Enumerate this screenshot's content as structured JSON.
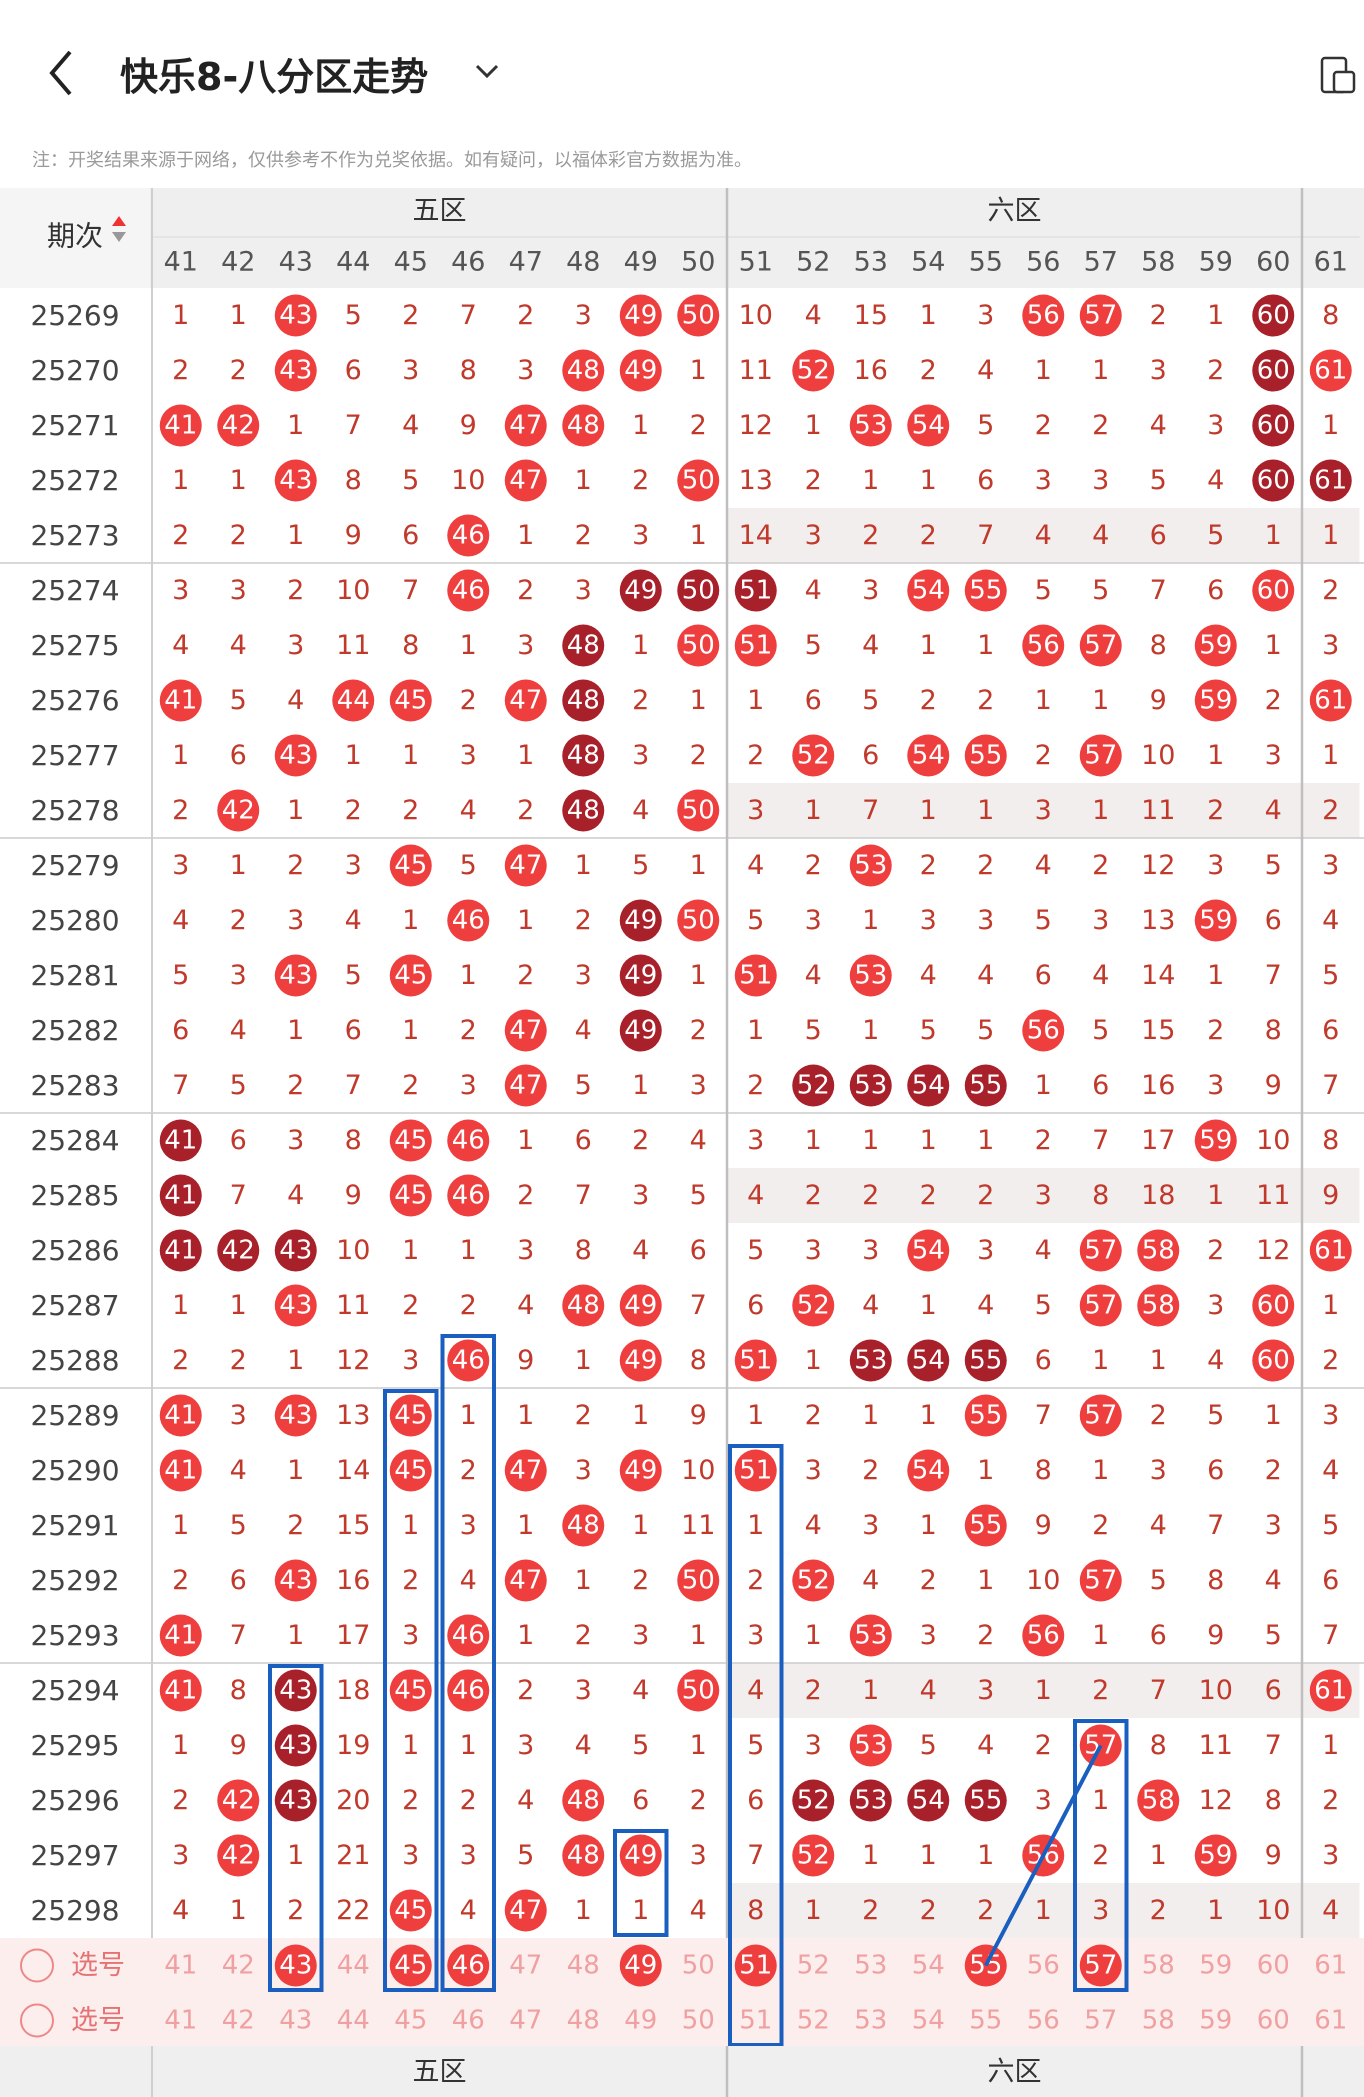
{
  "header": {
    "title": "快乐8-八分区走势",
    "notice": "注：开奖结果来源于网络，仅供参考不作为兑奖依据。如有疑问，以福体彩官方数据为准。",
    "icons": {
      "back": "chevron-left-icon",
      "title_dropdown": "chevron-down-icon",
      "device": "device-toggle-icon"
    }
  },
  "table": {
    "period_header": "期次",
    "zone_names": [
      "五区",
      "六区"
    ],
    "columns": [
      41,
      42,
      43,
      44,
      45,
      46,
      47,
      48,
      49,
      50,
      51,
      52,
      53,
      54,
      55,
      56,
      57,
      58,
      59,
      60,
      61
    ],
    "shaded_rows": [
      4,
      9,
      16,
      25,
      29
    ],
    "rows": [
      {
        "period": "25269",
        "cells": [
          1,
          1,
          "43",
          5,
          2,
          7,
          2,
          3,
          "49",
          "50",
          10,
          4,
          15,
          1,
          3,
          "56",
          "57",
          2,
          1,
          "60d",
          8
        ]
      },
      {
        "period": "25270",
        "cells": [
          2,
          2,
          "43",
          6,
          3,
          8,
          3,
          "48",
          "49",
          1,
          11,
          "52",
          16,
          2,
          4,
          1,
          1,
          3,
          2,
          "60d",
          "61"
        ]
      },
      {
        "period": "25271",
        "cells": [
          "41",
          "42",
          1,
          7,
          4,
          9,
          "47",
          "48",
          1,
          2,
          12,
          1,
          "53",
          "54",
          5,
          2,
          2,
          4,
          3,
          "60d",
          1
        ]
      },
      {
        "period": "25272",
        "cells": [
          1,
          1,
          "43",
          8,
          5,
          10,
          "47",
          1,
          2,
          "50",
          13,
          2,
          1,
          1,
          6,
          3,
          3,
          5,
          4,
          "60d",
          "61d"
        ]
      },
      {
        "period": "25273",
        "cells": [
          2,
          2,
          1,
          9,
          6,
          "46",
          1,
          2,
          3,
          1,
          14,
          3,
          2,
          2,
          7,
          4,
          4,
          6,
          5,
          1,
          1
        ]
      },
      {
        "period": "25274",
        "cells": [
          3,
          3,
          2,
          10,
          7,
          "46",
          2,
          3,
          "49d",
          "50d",
          "51d",
          4,
          3,
          "54",
          "55",
          5,
          5,
          7,
          6,
          "60",
          2
        ]
      },
      {
        "period": "25275",
        "cells": [
          4,
          4,
          3,
          11,
          8,
          1,
          3,
          "48d",
          1,
          "50",
          "51",
          5,
          4,
          1,
          1,
          "56",
          "57",
          8,
          "59",
          1,
          3
        ]
      },
      {
        "period": "25276",
        "cells": [
          "41",
          5,
          4,
          "44",
          "45",
          2,
          "47",
          "48d",
          2,
          1,
          1,
          6,
          5,
          2,
          2,
          1,
          1,
          9,
          "59",
          2,
          "61"
        ]
      },
      {
        "period": "25277",
        "cells": [
          1,
          6,
          "43",
          1,
          1,
          3,
          1,
          "48d",
          3,
          2,
          2,
          "52",
          6,
          "54",
          "55",
          2,
          "57",
          10,
          1,
          3,
          1
        ]
      },
      {
        "period": "25278",
        "cells": [
          2,
          "42",
          1,
          2,
          2,
          4,
          2,
          "48d",
          4,
          "50",
          3,
          1,
          7,
          1,
          1,
          3,
          1,
          11,
          2,
          4,
          2
        ]
      },
      {
        "period": "25279",
        "cells": [
          3,
          1,
          2,
          3,
          "45",
          5,
          "47",
          1,
          5,
          1,
          4,
          2,
          "53",
          2,
          2,
          4,
          2,
          12,
          3,
          5,
          3
        ]
      },
      {
        "period": "25280",
        "cells": [
          4,
          2,
          3,
          4,
          1,
          "46",
          1,
          2,
          "49d",
          "50",
          5,
          3,
          1,
          3,
          3,
          5,
          3,
          13,
          "59",
          6,
          4
        ]
      },
      {
        "period": "25281",
        "cells": [
          5,
          3,
          "43",
          5,
          "45",
          1,
          2,
          3,
          "49d",
          1,
          "51",
          4,
          "53",
          4,
          4,
          6,
          4,
          14,
          1,
          7,
          5
        ]
      },
      {
        "period": "25282",
        "cells": [
          6,
          4,
          1,
          6,
          1,
          2,
          "47",
          4,
          "49d",
          2,
          1,
          5,
          1,
          5,
          5,
          "56",
          5,
          15,
          2,
          8,
          6
        ]
      },
      {
        "period": "25283",
        "cells": [
          7,
          5,
          2,
          7,
          2,
          3,
          "47",
          5,
          1,
          3,
          2,
          "52d",
          "53d",
          "54d",
          "55d",
          1,
          6,
          16,
          3,
          9,
          7
        ]
      },
      {
        "period": "25284",
        "cells": [
          "41d",
          6,
          3,
          8,
          "45",
          "46",
          1,
          6,
          2,
          4,
          3,
          1,
          1,
          1,
          1,
          2,
          7,
          17,
          "59",
          10,
          8
        ]
      },
      {
        "period": "25285",
        "cells": [
          "41d",
          7,
          4,
          9,
          "45",
          "46",
          2,
          7,
          3,
          5,
          4,
          2,
          2,
          2,
          2,
          3,
          8,
          18,
          1,
          11,
          9
        ]
      },
      {
        "period": "25286",
        "cells": [
          "41d",
          "42d",
          "43d",
          10,
          1,
          1,
          3,
          8,
          4,
          6,
          5,
          3,
          3,
          "54",
          3,
          4,
          "57",
          "58",
          2,
          12,
          "61"
        ]
      },
      {
        "period": "25287",
        "cells": [
          1,
          1,
          "43",
          11,
          2,
          2,
          4,
          "48",
          "49",
          7,
          6,
          "52",
          4,
          1,
          4,
          5,
          "57",
          "58",
          3,
          "60",
          1
        ]
      },
      {
        "period": "25288",
        "cells": [
          2,
          2,
          1,
          12,
          3,
          "46",
          9,
          1,
          "49",
          8,
          "51",
          1,
          "53d",
          "54d",
          "55d",
          6,
          1,
          1,
          4,
          "60",
          2
        ]
      },
      {
        "period": "25289",
        "cells": [
          "41",
          3,
          "43",
          13,
          "45",
          1,
          1,
          2,
          1,
          9,
          1,
          2,
          1,
          1,
          "55",
          7,
          "57",
          2,
          5,
          1,
          3
        ]
      },
      {
        "period": "25290",
        "cells": [
          "41",
          4,
          1,
          14,
          "45",
          2,
          "47",
          3,
          "49",
          10,
          "51",
          3,
          2,
          "54",
          1,
          8,
          1,
          3,
          6,
          2,
          4
        ]
      },
      {
        "period": "25291",
        "cells": [
          1,
          5,
          2,
          15,
          1,
          3,
          1,
          "48",
          1,
          11,
          1,
          4,
          3,
          1,
          "55",
          9,
          2,
          4,
          7,
          3,
          5
        ]
      },
      {
        "period": "25292",
        "cells": [
          2,
          6,
          "43",
          16,
          2,
          4,
          "47",
          1,
          2,
          "50",
          2,
          "52",
          4,
          2,
          1,
          10,
          "57",
          5,
          8,
          4,
          6
        ]
      },
      {
        "period": "25293",
        "cells": [
          "41",
          7,
          1,
          17,
          3,
          "46",
          1,
          2,
          3,
          1,
          3,
          1,
          "53",
          3,
          2,
          "56",
          1,
          6,
          9,
          5,
          7
        ]
      },
      {
        "period": "25294",
        "cells": [
          "41",
          8,
          "43d",
          18,
          "45",
          "46",
          2,
          3,
          4,
          "50",
          4,
          2,
          1,
          4,
          3,
          1,
          2,
          7,
          10,
          6,
          "61"
        ]
      },
      {
        "period": "25295",
        "cells": [
          1,
          9,
          "43d",
          19,
          1,
          1,
          3,
          4,
          5,
          1,
          5,
          3,
          "53",
          5,
          4,
          2,
          "57",
          8,
          11,
          7,
          1
        ]
      },
      {
        "period": "25296",
        "cells": [
          2,
          "42",
          "43d",
          20,
          2,
          2,
          4,
          "48",
          6,
          2,
          6,
          "52d",
          "53d",
          "54d",
          "55d",
          3,
          1,
          "58",
          12,
          8,
          2
        ]
      },
      {
        "period": "25297",
        "cells": [
          3,
          "42",
          1,
          21,
          3,
          3,
          5,
          "48",
          "49",
          3,
          7,
          "52",
          1,
          1,
          1,
          "56",
          2,
          1,
          "59",
          9,
          3
        ]
      },
      {
        "period": "25298",
        "cells": [
          4,
          1,
          2,
          22,
          "45",
          4,
          "47",
          1,
          1,
          4,
          8,
          1,
          2,
          2,
          2,
          1,
          3,
          2,
          1,
          10,
          4
        ]
      }
    ],
    "select_label": "选号",
    "select_row_1_picked": [
      43,
      45,
      46,
      49,
      51,
      55,
      57
    ],
    "select_row_2_picked": [],
    "highlight_boxes": [
      {
        "col": 43,
        "from": "25294",
        "to": "选号1"
      },
      {
        "col": 45,
        "from": "25289",
        "to": "选号1"
      },
      {
        "col": 46,
        "from": "25288",
        "to": "选号1"
      },
      {
        "col": 49,
        "from": "25297",
        "to": "25298"
      },
      {
        "col": 51,
        "from": "25290",
        "to": "选号2"
      },
      {
        "col": 57,
        "from": "25295",
        "to": "选号1"
      }
    ],
    "connector": {
      "from_col": 55,
      "from_row": "选号1",
      "to_col": 57,
      "to_row": "25295"
    }
  },
  "colors": {
    "ball": "#ef3e3e",
    "ball_dark": "#a8202a",
    "miss_text": "#c0392b",
    "select_text": "#f0a0a0",
    "box": "#1a5fbf",
    "header_bg": "#efefef",
    "select_bg": "#fdeeee",
    "shade": "#f2eeee"
  }
}
